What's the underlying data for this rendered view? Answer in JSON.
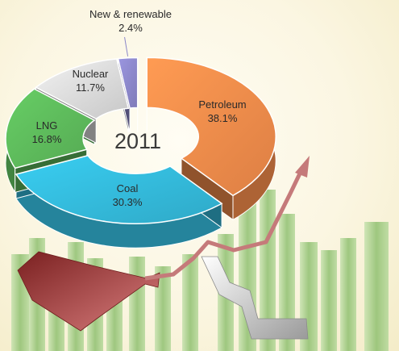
{
  "chart_data": {
    "type": "pie",
    "style": "3d-donut",
    "center_label": "2011",
    "slices": [
      {
        "name": "Petroleum",
        "value": 38.1,
        "value_label": "38.1%",
        "color": "#f08a4a",
        "exploded": true
      },
      {
        "name": "Coal",
        "value": 30.3,
        "value_label": "30.3%",
        "color": "#33b8d8",
        "exploded": true
      },
      {
        "name": "LNG",
        "value": 16.8,
        "value_label": "16.8%",
        "color": "#5cb85a",
        "exploded": false
      },
      {
        "name": "Nuclear",
        "value": 11.7,
        "value_label": "11.7%",
        "color": "#d8d8d8",
        "exploded": false
      },
      {
        "name": "New & renewable",
        "value": 2.4,
        "value_label": "2.4%",
        "color": "#8a86c8",
        "exploded": false
      }
    ],
    "legend": "none"
  },
  "colors": {
    "background": "#fbf6e2",
    "trend_arrow": "#b85a5a",
    "background_bars": "#a8cc8c"
  }
}
